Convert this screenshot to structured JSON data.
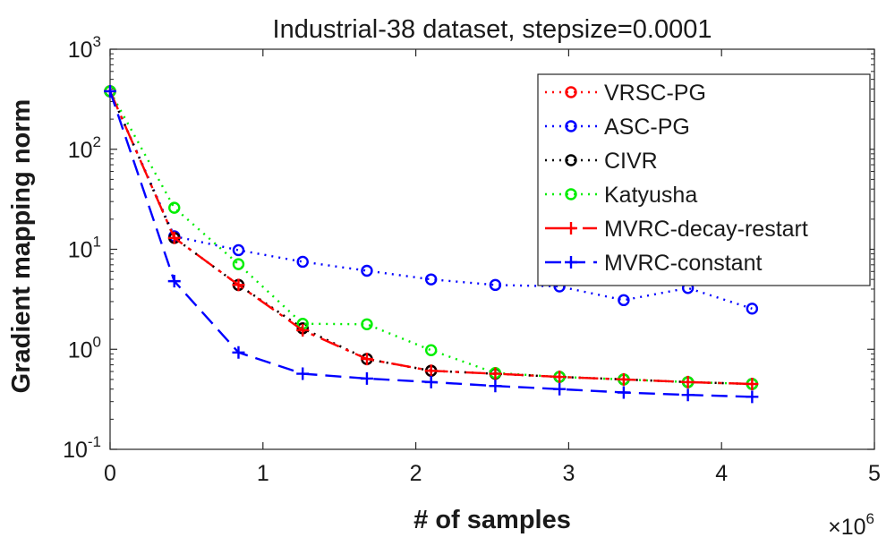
{
  "chart_data": {
    "type": "line",
    "title": "Industrial-38 dataset, stepsize=0.0001",
    "xlabel": "# of samples",
    "ylabel": "Gradient mapping norm",
    "xlim": [
      0,
      5
    ],
    "x_multiplier_base": "×10",
    "x_multiplier_exp": "6",
    "yscale": "log",
    "ylim": [
      0.1,
      1000
    ],
    "x_ticks": [
      {
        "value": 0,
        "label": "0"
      },
      {
        "value": 1,
        "label": "1"
      },
      {
        "value": 2,
        "label": "2"
      },
      {
        "value": 3,
        "label": "3"
      },
      {
        "value": 4,
        "label": "4"
      },
      {
        "value": 5,
        "label": "5"
      }
    ],
    "y_ticks": [
      {
        "value": 0.1,
        "base": "10",
        "exp": "-1"
      },
      {
        "value": 1,
        "base": "10",
        "exp": "0"
      },
      {
        "value": 10,
        "base": "10",
        "exp": "1"
      },
      {
        "value": 100,
        "base": "10",
        "exp": "2"
      },
      {
        "value": 1000,
        "base": "10",
        "exp": "3"
      }
    ],
    "grid": false,
    "legend_position": "top-right",
    "series": [
      {
        "name": "VRSC-PG",
        "color": "#ff0000",
        "dash": "2,6",
        "marker": "circle",
        "x": [
          0,
          0.42,
          0.84,
          1.26,
          1.68,
          2.1,
          2.52,
          2.94,
          3.36,
          3.78,
          4.2
        ],
        "y": [
          380,
          13,
          4.4,
          1.62,
          0.8,
          0.61,
          0.57,
          0.53,
          0.5,
          0.47,
          0.45
        ]
      },
      {
        "name": "ASC-PG",
        "color": "#0000ff",
        "dash": "2,6",
        "marker": "circle",
        "x": [
          0,
          0.42,
          0.84,
          1.26,
          1.68,
          2.1,
          2.52,
          2.94,
          3.36,
          3.78,
          4.2
        ],
        "y": [
          380,
          13.5,
          9.8,
          7.5,
          6.1,
          5.0,
          4.4,
          4.25,
          3.1,
          4.1,
          2.55
        ]
      },
      {
        "name": "CIVR",
        "color": "#000000",
        "dash": "2,6",
        "marker": "circle",
        "x": [
          0,
          0.42,
          0.84,
          1.26,
          1.68,
          2.1,
          2.52,
          2.94,
          3.36,
          3.78,
          4.2
        ],
        "y": [
          380,
          13,
          4.4,
          1.62,
          0.8,
          0.61,
          0.57,
          0.53,
          0.5,
          0.47,
          0.45
        ]
      },
      {
        "name": "Katyusha",
        "color": "#00ee00",
        "dash": "2,6",
        "marker": "circle",
        "x": [
          0,
          0.42,
          0.84,
          1.26,
          1.68,
          2.1,
          2.52,
          2.94,
          3.36,
          3.78,
          4.2
        ],
        "y": [
          380,
          26,
          7.1,
          1.8,
          1.78,
          0.98,
          0.58,
          0.53,
          0.5,
          0.47,
          0.45
        ]
      },
      {
        "name": "MVRC-decay-restart",
        "color": "#ff0000",
        "dash": "22,8,4,8",
        "marker": "plus",
        "x": [
          0,
          0.42,
          0.84,
          1.26,
          1.68,
          2.1,
          2.52,
          2.94,
          3.36,
          3.78,
          4.2
        ],
        "y": [
          380,
          13,
          4.4,
          1.55,
          0.8,
          0.61,
          0.57,
          0.53,
          0.5,
          0.47,
          0.45
        ]
      },
      {
        "name": "MVRC-constant",
        "color": "#0000ff",
        "dash": "18,9",
        "marker": "plus",
        "x": [
          0,
          0.42,
          0.84,
          1.26,
          1.68,
          2.1,
          2.52,
          2.94,
          3.36,
          3.78,
          4.2
        ],
        "y": [
          380,
          4.8,
          0.93,
          0.57,
          0.51,
          0.47,
          0.43,
          0.4,
          0.37,
          0.35,
          0.335
        ]
      }
    ]
  }
}
